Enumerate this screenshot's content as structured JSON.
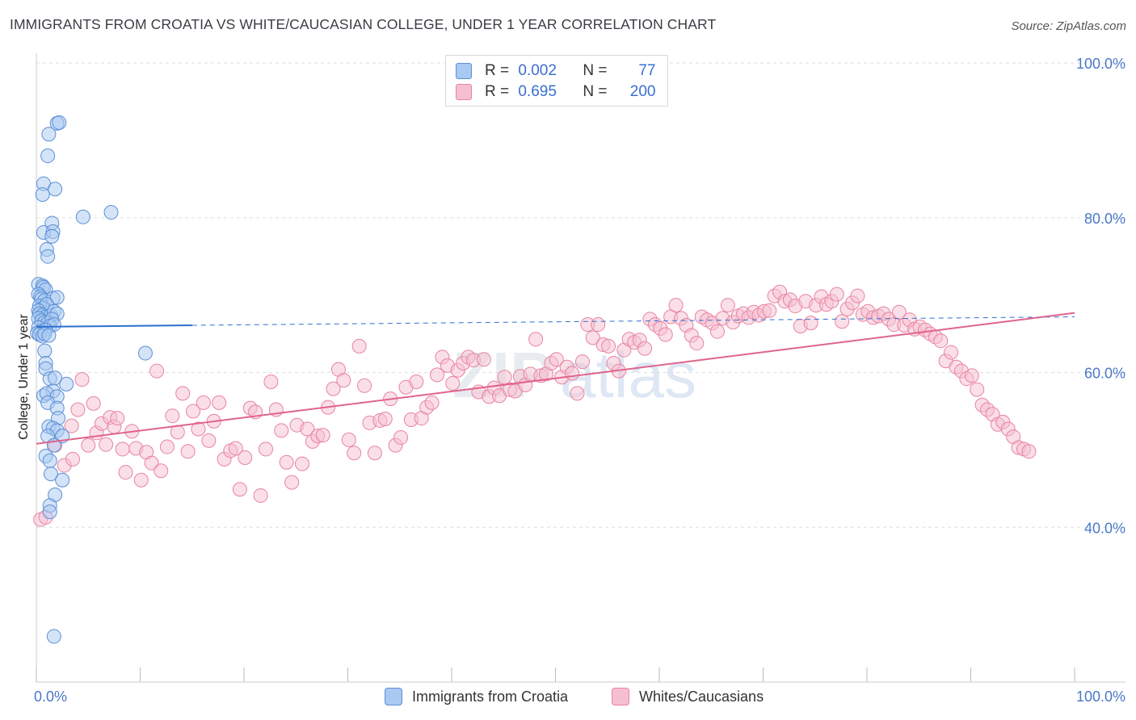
{
  "header": {
    "title": "IMMIGRANTS FROM CROATIA VS WHITE/CAUCASIAN COLLEGE, UNDER 1 YEAR CORRELATION CHART",
    "source": "Source: ZipAtlas.com"
  },
  "legend": {
    "rows": [
      {
        "r_label": "R =",
        "r_value": "0.002",
        "n_label": "N =",
        "n_value": "77"
      },
      {
        "r_label": "R =",
        "r_value": "0.695",
        "n_label": "N =",
        "n_value": "200"
      }
    ]
  },
  "bottom_legend": [
    "Immigrants from Croatia",
    "Whites/Caucasians"
  ],
  "colors": {
    "blue_fill": "#a9c9f2",
    "blue_stroke": "#5b8fd6",
    "blue_line": "#2e6fd0",
    "pink_fill": "#f6bfd1",
    "pink_stroke": "#e8849f",
    "pink_line": "#e0648c",
    "grid": "#dddddd",
    "tick_text": "#4a78c8"
  },
  "chart_data": {
    "type": "scatter",
    "title": "IMMIGRANTS FROM CROATIA VS WHITE/CAUCASIAN COLLEGE, UNDER 1 YEAR CORRELATION CHART",
    "xlabel": "",
    "ylabel": "College, Under 1 year",
    "xlim": [
      0,
      100
    ],
    "ylim": [
      20,
      100
    ],
    "x_tick_labels": [
      "0.0%",
      "100.0%"
    ],
    "y_ticks": [
      40,
      60,
      80,
      100
    ],
    "y_tick_labels": [
      "40.0%",
      "60.0%",
      "80.0%",
      "100.0%"
    ],
    "grid": true,
    "watermark": "ZIPatlas",
    "series": [
      {
        "name": "Immigrants from Croatia",
        "R": 0.002,
        "N": 77,
        "trend": {
          "x": [
            0,
            15
          ],
          "y": [
            65.9,
            66.1
          ],
          "dashed_x": [
            15,
            100
          ],
          "dashed_y": [
            66.1,
            67.2
          ]
        },
        "points": [
          [
            2.0,
            92.2
          ],
          [
            2.2,
            92.3
          ],
          [
            1.2,
            90.8
          ],
          [
            1.1,
            88.0
          ],
          [
            0.7,
            84.4
          ],
          [
            1.8,
            83.7
          ],
          [
            0.6,
            83.0
          ],
          [
            7.2,
            80.7
          ],
          [
            4.5,
            80.1
          ],
          [
            1.5,
            79.3
          ],
          [
            0.7,
            78.1
          ],
          [
            1.6,
            78.2
          ],
          [
            1.5,
            77.6
          ],
          [
            1.0,
            75.9
          ],
          [
            1.1,
            75.0
          ],
          [
            0.2,
            71.4
          ],
          [
            0.6,
            71.2
          ],
          [
            0.7,
            71.0
          ],
          [
            0.9,
            70.7
          ],
          [
            0.2,
            70.1
          ],
          [
            0.4,
            69.8
          ],
          [
            0.5,
            69.5
          ],
          [
            0.8,
            69.3
          ],
          [
            1.6,
            69.6
          ],
          [
            2.0,
            69.7
          ],
          [
            0.3,
            68.6
          ],
          [
            0.6,
            68.3
          ],
          [
            1.0,
            68.8
          ],
          [
            0.2,
            68.0
          ],
          [
            0.3,
            67.6
          ],
          [
            0.6,
            67.4
          ],
          [
            0.9,
            67.2
          ],
          [
            1.4,
            67.4
          ],
          [
            1.7,
            67.9
          ],
          [
            2.0,
            67.6
          ],
          [
            0.2,
            67.0
          ],
          [
            0.5,
            66.7
          ],
          [
            0.8,
            66.5
          ],
          [
            1.1,
            66.4
          ],
          [
            1.5,
            66.9
          ],
          [
            1.3,
            66.0
          ],
          [
            1.7,
            66.2
          ],
          [
            0.2,
            65.8
          ],
          [
            0.4,
            65.3
          ],
          [
            0.9,
            65.5
          ],
          [
            0.1,
            65.1
          ],
          [
            0.3,
            64.9
          ],
          [
            0.6,
            64.7
          ],
          [
            0.8,
            65.0
          ],
          [
            1.2,
            64.8
          ],
          [
            10.5,
            62.5
          ],
          [
            0.8,
            62.8
          ],
          [
            0.9,
            61.2
          ],
          [
            0.9,
            60.5
          ],
          [
            1.3,
            59.2
          ],
          [
            1.8,
            59.3
          ],
          [
            2.9,
            58.5
          ],
          [
            1.6,
            57.6
          ],
          [
            0.7,
            57.0
          ],
          [
            1.0,
            57.3
          ],
          [
            2.0,
            56.9
          ],
          [
            1.1,
            56.1
          ],
          [
            2.0,
            55.4
          ],
          [
            2.1,
            54.1
          ],
          [
            1.2,
            53.0
          ],
          [
            1.6,
            52.8
          ],
          [
            2.0,
            52.5
          ],
          [
            1.1,
            51.8
          ],
          [
            2.5,
            51.8
          ],
          [
            1.7,
            50.6
          ],
          [
            0.9,
            49.2
          ],
          [
            1.3,
            48.6
          ],
          [
            1.4,
            46.9
          ],
          [
            2.5,
            46.1
          ],
          [
            1.8,
            44.2
          ],
          [
            1.3,
            42.8
          ],
          [
            1.3,
            42.0
          ],
          [
            1.7,
            25.9
          ]
        ]
      },
      {
        "name": "Whites/Caucasians",
        "R": 0.695,
        "N": 200,
        "trend": {
          "x": [
            0,
            100
          ],
          "y": [
            50.8,
            67.7
          ]
        },
        "points": [
          [
            0.4,
            41.0
          ],
          [
            0.9,
            41.3
          ],
          [
            1.8,
            50.6
          ],
          [
            2.7,
            48.0
          ],
          [
            3.4,
            53.1
          ],
          [
            3.5,
            48.8
          ],
          [
            4.0,
            55.2
          ],
          [
            4.4,
            59.1
          ],
          [
            5.0,
            50.6
          ],
          [
            5.5,
            56.0
          ],
          [
            5.8,
            52.2
          ],
          [
            6.3,
            53.4
          ],
          [
            6.7,
            50.7
          ],
          [
            7.1,
            54.2
          ],
          [
            7.5,
            53.0
          ],
          [
            7.8,
            54.1
          ],
          [
            8.3,
            50.1
          ],
          [
            8.6,
            47.1
          ],
          [
            9.2,
            52.4
          ],
          [
            9.6,
            50.2
          ],
          [
            10.1,
            46.1
          ],
          [
            10.6,
            49.7
          ],
          [
            11.1,
            48.3
          ],
          [
            11.6,
            60.2
          ],
          [
            12.0,
            47.3
          ],
          [
            12.6,
            50.4
          ],
          [
            13.1,
            54.4
          ],
          [
            13.6,
            52.3
          ],
          [
            14.1,
            57.3
          ],
          [
            14.6,
            49.8
          ],
          [
            15.1,
            55.0
          ],
          [
            15.6,
            52.7
          ],
          [
            16.1,
            56.1
          ],
          [
            16.6,
            51.2
          ],
          [
            17.1,
            53.7
          ],
          [
            17.6,
            56.1
          ],
          [
            18.1,
            48.8
          ],
          [
            18.7,
            49.9
          ],
          [
            19.2,
            50.2
          ],
          [
            19.6,
            44.9
          ],
          [
            20.1,
            49.0
          ],
          [
            20.6,
            55.4
          ],
          [
            21.1,
            54.9
          ],
          [
            21.6,
            44.1
          ],
          [
            22.1,
            50.1
          ],
          [
            22.6,
            58.8
          ],
          [
            23.1,
            55.2
          ],
          [
            23.6,
            52.5
          ],
          [
            24.1,
            48.4
          ],
          [
            24.6,
            45.8
          ],
          [
            25.1,
            53.2
          ],
          [
            25.6,
            48.2
          ],
          [
            26.1,
            52.7
          ],
          [
            26.6,
            51.1
          ],
          [
            27.1,
            51.8
          ],
          [
            27.6,
            51.9
          ],
          [
            28.1,
            55.5
          ],
          [
            28.6,
            57.9
          ],
          [
            29.1,
            60.4
          ],
          [
            29.6,
            59.0
          ],
          [
            30.1,
            51.3
          ],
          [
            30.6,
            49.6
          ],
          [
            31.1,
            63.4
          ],
          [
            31.6,
            58.3
          ],
          [
            32.1,
            53.5
          ],
          [
            32.6,
            49.6
          ],
          [
            33.1,
            53.8
          ],
          [
            33.6,
            54.0
          ],
          [
            34.1,
            56.6
          ],
          [
            34.6,
            50.6
          ],
          [
            35.1,
            51.6
          ],
          [
            35.6,
            58.1
          ],
          [
            36.1,
            53.9
          ],
          [
            36.6,
            58.8
          ],
          [
            37.1,
            54.1
          ],
          [
            37.6,
            55.5
          ],
          [
            38.1,
            56.1
          ],
          [
            38.6,
            59.7
          ],
          [
            39.1,
            62.0
          ],
          [
            39.6,
            60.9
          ],
          [
            40.1,
            58.6
          ],
          [
            40.6,
            60.3
          ],
          [
            41.1,
            61.2
          ],
          [
            41.6,
            62.0
          ],
          [
            42.1,
            61.6
          ],
          [
            42.6,
            57.5
          ],
          [
            43.1,
            61.7
          ],
          [
            43.6,
            56.9
          ],
          [
            44.1,
            58.0
          ],
          [
            44.6,
            57.0
          ],
          [
            45.1,
            59.4
          ],
          [
            45.6,
            57.8
          ],
          [
            46.1,
            57.6
          ],
          [
            46.6,
            59.5
          ],
          [
            47.1,
            58.4
          ],
          [
            47.6,
            59.8
          ],
          [
            48.1,
            64.3
          ],
          [
            48.6,
            59.6
          ],
          [
            49.1,
            59.8
          ],
          [
            49.6,
            61.2
          ],
          [
            50.1,
            61.7
          ],
          [
            50.6,
            59.4
          ],
          [
            51.1,
            60.7
          ],
          [
            51.6,
            59.9
          ],
          [
            52.1,
            57.3
          ],
          [
            52.6,
            61.4
          ],
          [
            53.1,
            66.2
          ],
          [
            53.6,
            64.5
          ],
          [
            54.1,
            66.2
          ],
          [
            54.6,
            63.6
          ],
          [
            55.1,
            63.4
          ],
          [
            55.6,
            61.2
          ],
          [
            56.1,
            60.2
          ],
          [
            56.6,
            62.9
          ],
          [
            57.1,
            64.3
          ],
          [
            57.6,
            63.9
          ],
          [
            58.1,
            64.2
          ],
          [
            58.6,
            63.1
          ],
          [
            59.1,
            66.9
          ],
          [
            59.6,
            66.2
          ],
          [
            60.1,
            65.7
          ],
          [
            60.6,
            64.9
          ],
          [
            61.1,
            67.2
          ],
          [
            61.6,
            68.7
          ],
          [
            62.1,
            67.0
          ],
          [
            62.6,
            66.1
          ],
          [
            63.1,
            64.8
          ],
          [
            63.6,
            63.8
          ],
          [
            64.1,
            67.2
          ],
          [
            64.6,
            66.8
          ],
          [
            65.1,
            66.4
          ],
          [
            65.6,
            65.3
          ],
          [
            66.1,
            67.0
          ],
          [
            66.6,
            68.7
          ],
          [
            67.1,
            66.5
          ],
          [
            67.6,
            67.3
          ],
          [
            68.1,
            67.6
          ],
          [
            68.6,
            67.1
          ],
          [
            69.1,
            67.8
          ],
          [
            69.6,
            67.4
          ],
          [
            70.1,
            67.9
          ],
          [
            70.6,
            68.0
          ],
          [
            71.1,
            69.9
          ],
          [
            71.6,
            70.4
          ],
          [
            72.1,
            69.2
          ],
          [
            72.6,
            69.4
          ],
          [
            73.1,
            68.6
          ],
          [
            73.6,
            66.0
          ],
          [
            74.1,
            69.2
          ],
          [
            74.6,
            66.4
          ],
          [
            75.1,
            68.7
          ],
          [
            75.6,
            69.8
          ],
          [
            76.1,
            68.8
          ],
          [
            76.6,
            69.2
          ],
          [
            77.1,
            70.1
          ],
          [
            77.6,
            66.6
          ],
          [
            78.1,
            68.2
          ],
          [
            78.6,
            69.0
          ],
          [
            79.1,
            69.9
          ],
          [
            79.6,
            67.5
          ],
          [
            80.1,
            67.9
          ],
          [
            80.6,
            67.1
          ],
          [
            81.1,
            67.3
          ],
          [
            81.6,
            67.6
          ],
          [
            82.1,
            66.9
          ],
          [
            82.6,
            66.2
          ],
          [
            83.1,
            67.8
          ],
          [
            83.6,
            66.1
          ],
          [
            84.1,
            66.8
          ],
          [
            84.6,
            65.6
          ],
          [
            85.1,
            65.9
          ],
          [
            85.6,
            65.5
          ],
          [
            86.1,
            65.0
          ],
          [
            86.6,
            64.6
          ],
          [
            87.1,
            64.1
          ],
          [
            87.6,
            61.5
          ],
          [
            88.1,
            62.6
          ],
          [
            88.6,
            60.7
          ],
          [
            89.1,
            60.2
          ],
          [
            89.6,
            59.2
          ],
          [
            90.1,
            59.6
          ],
          [
            90.6,
            57.8
          ],
          [
            91.1,
            55.8
          ],
          [
            91.6,
            55.2
          ],
          [
            92.1,
            54.6
          ],
          [
            92.6,
            53.3
          ],
          [
            93.1,
            53.6
          ],
          [
            93.6,
            52.7
          ],
          [
            94.1,
            51.7
          ],
          [
            94.6,
            50.3
          ],
          [
            95.1,
            50.1
          ],
          [
            95.6,
            49.8
          ]
        ]
      }
    ]
  }
}
